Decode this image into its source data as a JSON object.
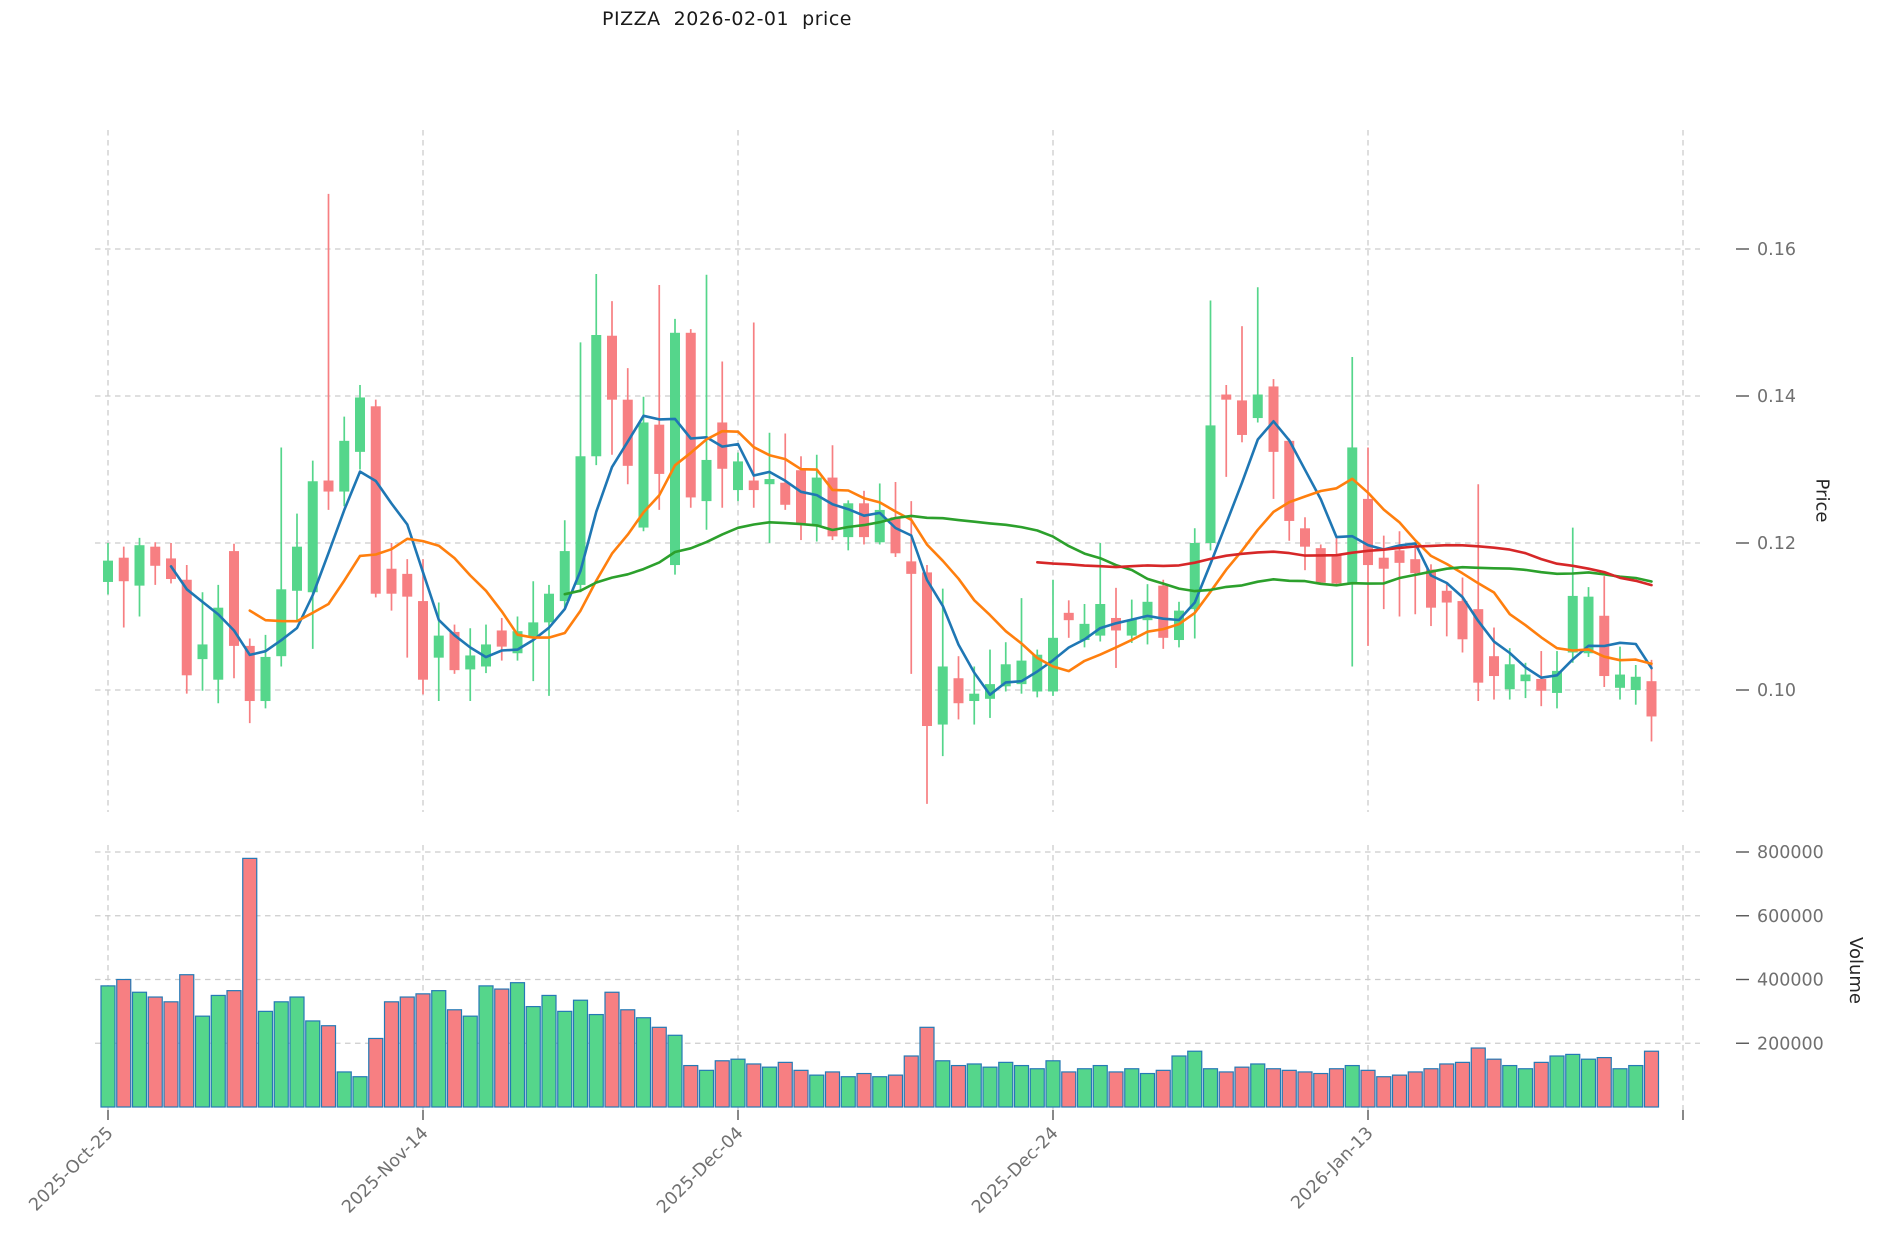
{
  "header": {
    "title": "PIZZA  2026-02-01  price"
  },
  "price_axis": {
    "label": "Price",
    "tick_labels": [
      "0.16",
      "0.14",
      "0.12",
      "0.10"
    ],
    "tick_values": [
      0.16,
      0.14,
      0.12,
      0.1
    ]
  },
  "volume_axis": {
    "label": "Volume",
    "tick_labels": [
      "800000",
      "600000",
      "400000",
      "200000"
    ],
    "tick_values": [
      800000,
      600000,
      400000,
      200000
    ]
  },
  "x_axis": {
    "tick_labels": [
      "2025-Oct-25",
      "2025-Nov-14",
      "2025-Dec-04",
      "2025-Dec-24",
      "2026-Jan-13",
      ""
    ],
    "tick_days": [
      0,
      20,
      40,
      60,
      80,
      100
    ]
  },
  "colors": {
    "up": "#55d68b",
    "down": "#f77f82",
    "volume_bar_edge": "#2579b5",
    "ma5": "#1f77b4",
    "ma10": "#ff7f0e",
    "ma30": "#2ca02c",
    "ma60": "#d62728",
    "grid": "#cccccc",
    "tick_text": "#707070",
    "tick_mark": "#555555"
  },
  "chart_data": {
    "type": "candlestick",
    "title": "PIZZA  2026-02-01  price",
    "xlabel": "",
    "ylabel": "Price",
    "ylabel2": "Volume",
    "grid": true,
    "price_ylim": [
      0.0834,
      0.1762
    ],
    "volume_ylim": [
      0,
      830000
    ],
    "x_tick_labels": [
      "2025-Oct-25",
      "2025-Nov-14",
      "2025-Dec-04",
      "2025-Dec-24",
      "2026-Jan-13",
      ""
    ],
    "x_tick_days": [
      0,
      20,
      40,
      60,
      80,
      100
    ],
    "moving_averages": [
      {
        "name": "MA5",
        "window": 5,
        "color": "#1f77b4"
      },
      {
        "name": "MA10",
        "window": 10,
        "color": "#ff7f0e"
      },
      {
        "name": "MA30",
        "window": 30,
        "color": "#2ca02c"
      },
      {
        "name": "MA60",
        "window": 60,
        "color": "#d62728"
      }
    ],
    "ohlc": [
      [
        0.1147,
        0.12,
        0.113,
        0.1176
      ],
      [
        0.118,
        0.1195,
        0.1085,
        0.1148
      ],
      [
        0.1142,
        0.1207,
        0.11,
        0.1197
      ],
      [
        0.1195,
        0.1201,
        0.1143,
        0.1169
      ],
      [
        0.1179,
        0.12,
        0.1145,
        0.1151
      ],
      [
        0.115,
        0.117,
        0.0995,
        0.102
      ],
      [
        0.1042,
        0.1133,
        0.0999,
        0.1062
      ],
      [
        0.1014,
        0.1143,
        0.0982,
        0.1112
      ],
      [
        0.1189,
        0.1199,
        0.1016,
        0.106
      ],
      [
        0.106,
        0.107,
        0.0955,
        0.0985
      ],
      [
        0.0985,
        0.1075,
        0.0975,
        0.1045
      ],
      [
        0.1046,
        0.133,
        0.1032,
        0.1137
      ],
      [
        0.1135,
        0.124,
        0.1095,
        0.1195
      ],
      [
        0.1133,
        0.1312,
        0.1056,
        0.1284
      ],
      [
        0.1285,
        0.1675,
        0.1245,
        0.127
      ],
      [
        0.127,
        0.1372,
        0.125,
        0.1339
      ],
      [
        0.1324,
        0.1415,
        0.13,
        0.1398
      ],
      [
        0.1386,
        0.1395,
        0.1126,
        0.1131
      ],
      [
        0.1165,
        0.12,
        0.1108,
        0.1131
      ],
      [
        0.1158,
        0.1178,
        0.1044,
        0.1127
      ],
      [
        0.1121,
        0.1178,
        0.0994,
        0.1014
      ],
      [
        0.1044,
        0.1119,
        0.0985,
        0.1074
      ],
      [
        0.1079,
        0.1089,
        0.1022,
        0.1027
      ],
      [
        0.1028,
        0.1084,
        0.0985,
        0.1047
      ],
      [
        0.1032,
        0.1089,
        0.1023,
        0.1062
      ],
      [
        0.1081,
        0.1098,
        0.104,
        0.1059
      ],
      [
        0.105,
        0.11,
        0.104,
        0.108
      ],
      [
        0.1073,
        0.1148,
        0.1012,
        0.1092
      ],
      [
        0.1092,
        0.1143,
        0.0992,
        0.1131
      ],
      [
        0.1121,
        0.1231,
        0.1111,
        0.1189
      ],
      [
        0.1143,
        0.1473,
        0.1133,
        0.1318
      ],
      [
        0.1318,
        0.1566,
        0.1306,
        0.1483
      ],
      [
        0.1482,
        0.1529,
        0.132,
        0.1395
      ],
      [
        0.1395,
        0.1438,
        0.128,
        0.1305
      ],
      [
        0.1221,
        0.1399,
        0.1216,
        0.1364
      ],
      [
        0.1361,
        0.1551,
        0.1245,
        0.1294
      ],
      [
        0.117,
        0.1505,
        0.1157,
        0.1486
      ],
      [
        0.1486,
        0.1491,
        0.1248,
        0.1262
      ],
      [
        0.1257,
        0.1565,
        0.1218,
        0.1313
      ],
      [
        0.1364,
        0.1447,
        0.1248,
        0.1301
      ],
      [
        0.1272,
        0.1323,
        0.1257,
        0.1311
      ],
      [
        0.1285,
        0.15,
        0.1248,
        0.1272
      ],
      [
        0.128,
        0.135,
        0.12,
        0.1287
      ],
      [
        0.1282,
        0.1349,
        0.1245,
        0.1252
      ],
      [
        0.1299,
        0.1318,
        0.1204,
        0.1226
      ],
      [
        0.1224,
        0.132,
        0.1202,
        0.1289
      ],
      [
        0.1289,
        0.1333,
        0.1204,
        0.1209
      ],
      [
        0.1208,
        0.1258,
        0.119,
        0.1254
      ],
      [
        0.1254,
        0.1271,
        0.1198,
        0.1208
      ],
      [
        0.1201,
        0.1281,
        0.1198,
        0.1245
      ],
      [
        0.1235,
        0.1283,
        0.1181,
        0.1186
      ],
      [
        0.1175,
        0.1257,
        0.1022,
        0.1158
      ],
      [
        0.116,
        0.117,
        0.0845,
        0.0951
      ],
      [
        0.0953,
        0.1138,
        0.091,
        0.1032
      ],
      [
        0.1016,
        0.1046,
        0.096,
        0.0982
      ],
      [
        0.0985,
        0.1032,
        0.0953,
        0.0995
      ],
      [
        0.0988,
        0.1055,
        0.0962,
        0.1008
      ],
      [
        0.1005,
        0.1065,
        0.0998,
        0.1035
      ],
      [
        0.1008,
        0.1125,
        0.0995,
        0.104
      ],
      [
        0.0998,
        0.1055,
        0.099,
        0.1048
      ],
      [
        0.0998,
        0.115,
        0.0992,
        0.1071
      ],
      [
        0.1105,
        0.1122,
        0.1071,
        0.1095
      ],
      [
        0.1068,
        0.1117,
        0.1058,
        0.109
      ],
      [
        0.1074,
        0.12,
        0.1066,
        0.1117
      ],
      [
        0.1098,
        0.1139,
        0.103,
        0.1081
      ],
      [
        0.1074,
        0.1123,
        0.1064,
        0.1096
      ],
      [
        0.1095,
        0.1144,
        0.1062,
        0.112
      ],
      [
        0.1142,
        0.115,
        0.1056,
        0.1071
      ],
      [
        0.1068,
        0.112,
        0.1058,
        0.1108
      ],
      [
        0.111,
        0.122,
        0.107,
        0.12
      ],
      [
        0.12,
        0.153,
        0.119,
        0.136
      ],
      [
        0.1402,
        0.1415,
        0.129,
        0.1395
      ],
      [
        0.1394,
        0.1495,
        0.1337,
        0.1347
      ],
      [
        0.137,
        0.1548,
        0.1364,
        0.1402
      ],
      [
        0.1413,
        0.1423,
        0.126,
        0.1324
      ],
      [
        0.1339,
        0.1342,
        0.1203,
        0.123
      ],
      [
        0.122,
        0.1235,
        0.1163,
        0.1195
      ],
      [
        0.1193,
        0.1198,
        0.1143,
        0.1146
      ],
      [
        0.1185,
        0.121,
        0.1141,
        0.1145
      ],
      [
        0.1145,
        0.1453,
        0.1032,
        0.133
      ],
      [
        0.126,
        0.133,
        0.106,
        0.117
      ],
      [
        0.118,
        0.121,
        0.111,
        0.1165
      ],
      [
        0.119,
        0.1216,
        0.11,
        0.1173
      ],
      [
        0.1178,
        0.12,
        0.1103,
        0.1159
      ],
      [
        0.1164,
        0.1171,
        0.1087,
        0.1112
      ],
      [
        0.1135,
        0.1144,
        0.1073,
        0.1119
      ],
      [
        0.1121,
        0.1153,
        0.1051,
        0.1069
      ],
      [
        0.111,
        0.128,
        0.0985,
        0.101
      ],
      [
        0.1046,
        0.1085,
        0.0987,
        0.1019
      ],
      [
        0.1001,
        0.1057,
        0.0987,
        0.1035
      ],
      [
        0.1012,
        0.1037,
        0.0989,
        0.1021
      ],
      [
        0.1015,
        0.1053,
        0.0978,
        0.0999
      ],
      [
        0.0996,
        0.1053,
        0.0975,
        0.1026
      ],
      [
        0.1051,
        0.1221,
        0.1037,
        0.1128
      ],
      [
        0.105,
        0.114,
        0.1045,
        0.1127
      ],
      [
        0.1101,
        0.1155,
        0.1004,
        0.1019
      ],
      [
        0.1003,
        0.1059,
        0.0987,
        0.1021
      ],
      [
        0.1,
        0.1034,
        0.098,
        0.1018
      ],
      [
        0.1012,
        0.1041,
        0.093,
        0.0964
      ]
    ],
    "volume": [
      380000,
      400000,
      360000,
      345000,
      330000,
      415000,
      285000,
      350000,
      365000,
      780000,
      300000,
      330000,
      345000,
      270000,
      255000,
      110000,
      95000,
      215000,
      330000,
      345000,
      355000,
      365000,
      305000,
      285000,
      380000,
      370000,
      390000,
      315000,
      350000,
      300000,
      335000,
      290000,
      360000,
      305000,
      280000,
      250000,
      225000,
      130000,
      115000,
      145000,
      150000,
      135000,
      125000,
      140000,
      115000,
      100000,
      110000,
      95000,
      105000,
      95000,
      100000,
      160000,
      250000,
      145000,
      130000,
      135000,
      125000,
      140000,
      130000,
      120000,
      145000,
      110000,
      120000,
      130000,
      110000,
      120000,
      105000,
      115000,
      160000,
      175000,
      120000,
      110000,
      125000,
      135000,
      120000,
      115000,
      110000,
      105000,
      120000,
      130000,
      115000,
      95000,
      100000,
      110000,
      120000,
      135000,
      140000,
      185000,
      150000,
      130000,
      120000,
      140000,
      160000,
      165000,
      150000,
      155000,
      120000,
      130000,
      175000
    ]
  }
}
